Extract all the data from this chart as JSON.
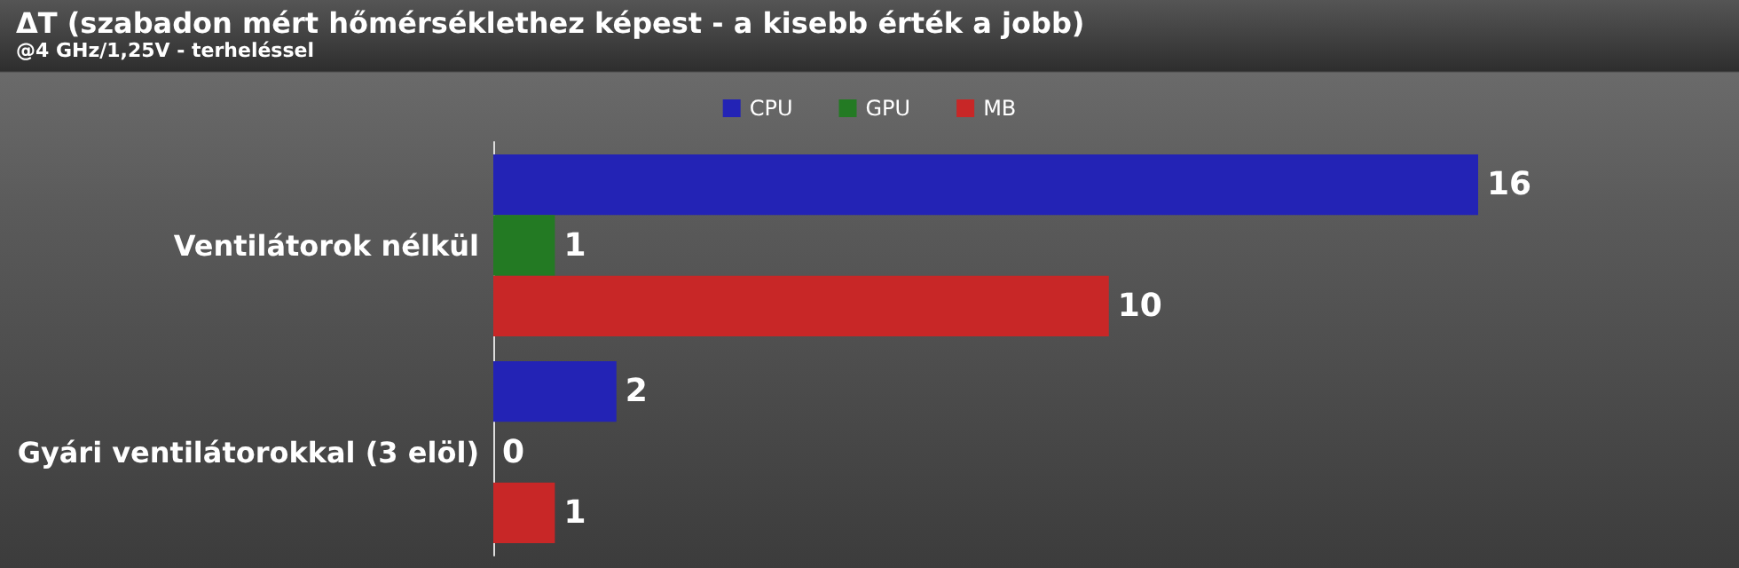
{
  "chart_data": {
    "type": "bar",
    "orientation": "horizontal",
    "title": "ΔT (szabadon mért hőmérséklethez képest - a kisebb érték a jobb)",
    "subtitle": "@4 GHz/1,25V - terheléssel",
    "categories": [
      "Ventilátorok nélkül",
      "Gyári ventilátorokkal (3 elöl)"
    ],
    "series": [
      {
        "name": "CPU",
        "color": "#2323b5",
        "values": [
          16,
          2
        ]
      },
      {
        "name": "GPU",
        "color": "#237a23",
        "values": [
          1,
          0
        ]
      },
      {
        "name": "MB",
        "color": "#c82727",
        "values": [
          10,
          1
        ]
      }
    ],
    "tick_labels": "y",
    "legend": "top",
    "data_labels": true
  }
}
